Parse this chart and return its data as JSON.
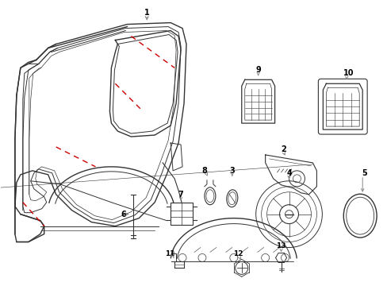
{
  "bg_color": "#ffffff",
  "line_color": "#333333",
  "red_color": "#cc0000",
  "gray_color": "#888888",
  "figsize": [
    4.89,
    3.6
  ],
  "dpi": 100
}
